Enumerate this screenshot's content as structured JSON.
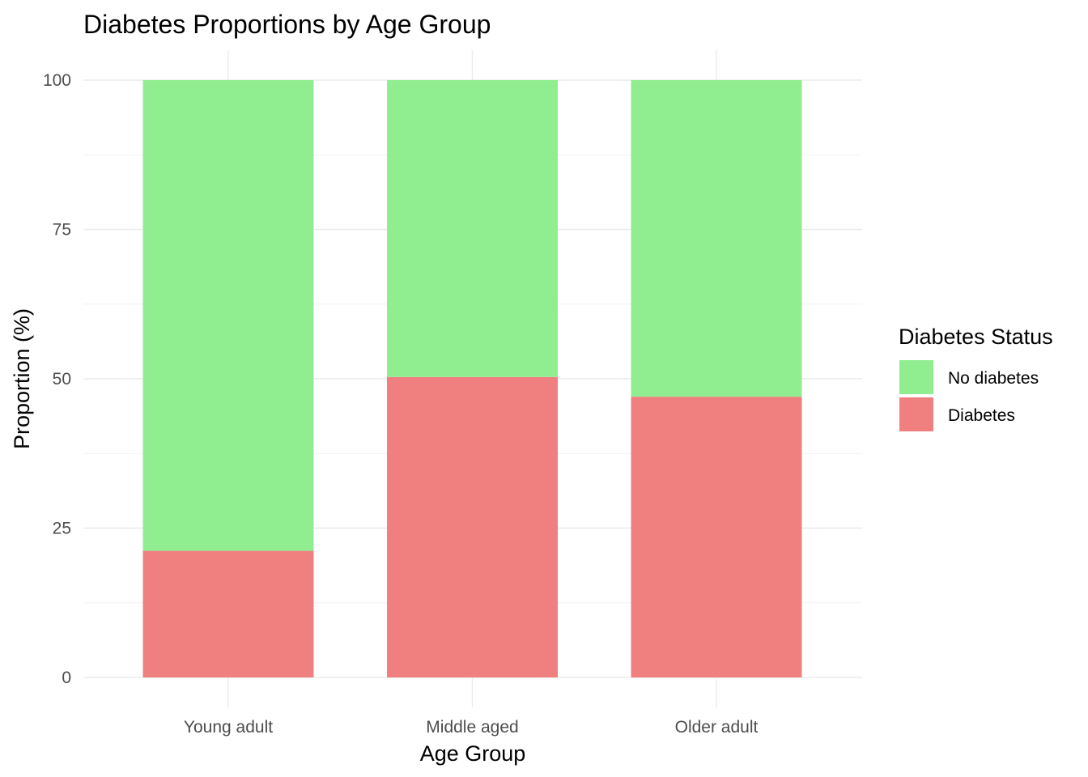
{
  "chart_data": {
    "type": "bar",
    "stacked": true,
    "title": "Diabetes Proportions by Age Group",
    "xlabel": "Age Group",
    "ylabel": "Proportion (%)",
    "categories": [
      "Young adult",
      "Middle aged",
      "Older adult"
    ],
    "ylim": [
      0,
      100
    ],
    "yticks": [
      0,
      25,
      50,
      75,
      100
    ],
    "grid": true,
    "legend": {
      "title": "Diabetes Status",
      "placement": "right",
      "entries": [
        "No diabetes",
        "Diabetes"
      ]
    },
    "series": [
      {
        "name": "Diabetes",
        "color": "#F08080",
        "values": [
          21.2,
          50.3,
          47.0
        ]
      },
      {
        "name": "No diabetes",
        "color": "#90EE90",
        "values": [
          78.8,
          49.7,
          53.0
        ]
      }
    ]
  }
}
